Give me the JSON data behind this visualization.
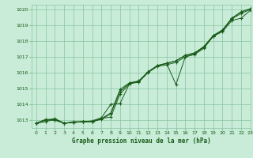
{
  "title": "Graphe pression niveau de la mer (hPa)",
  "background_color": "#c8ecd8",
  "grid_color": "#88c4a0",
  "line_color": "#1a5c1a",
  "xlim": [
    -0.5,
    23
  ],
  "ylim": [
    1012.5,
    1020.3
  ],
  "yticks": [
    1013,
    1014,
    1015,
    1016,
    1017,
    1018,
    1019,
    1020
  ],
  "xticks": [
    0,
    1,
    2,
    3,
    4,
    5,
    6,
    7,
    8,
    9,
    10,
    11,
    12,
    13,
    14,
    15,
    16,
    17,
    18,
    19,
    20,
    21,
    22,
    23
  ],
  "series": [
    [
      1012.8,
      1012.9,
      1013.05,
      1012.8,
      1012.85,
      1012.9,
      1012.9,
      1013.1,
      1013.2,
      1014.65,
      1015.3,
      1015.4,
      1016.0,
      1016.4,
      1016.5,
      1016.65,
      1017.0,
      1017.15,
      1017.55,
      1018.3,
      1018.6,
      1019.3,
      1019.45,
      1019.95
    ],
    [
      1012.8,
      1013.0,
      1013.1,
      1012.8,
      1012.9,
      1012.9,
      1012.9,
      1013.05,
      1013.4,
      1014.8,
      1015.35,
      1015.45,
      1016.05,
      1016.45,
      1016.6,
      1016.75,
      1017.1,
      1017.25,
      1017.65,
      1018.35,
      1018.7,
      1019.45,
      1019.85,
      1020.05
    ],
    [
      1012.8,
      1013.05,
      1013.0,
      1012.8,
      1012.85,
      1012.9,
      1012.95,
      1013.15,
      1014.0,
      1014.05,
      1015.3,
      1015.45,
      1016.05,
      1016.45,
      1016.6,
      1016.75,
      1017.1,
      1017.25,
      1017.65,
      1018.35,
      1018.7,
      1019.45,
      1019.85,
      1020.05
    ],
    [
      1012.8,
      1013.0,
      1013.0,
      1012.8,
      1012.85,
      1012.9,
      1012.9,
      1013.1,
      1013.45,
      1014.95,
      1015.35,
      1015.48,
      1016.05,
      1016.43,
      1016.58,
      1015.25,
      1017.0,
      1017.2,
      1017.6,
      1018.3,
      1018.65,
      1019.4,
      1019.75,
      1020.0
    ]
  ]
}
